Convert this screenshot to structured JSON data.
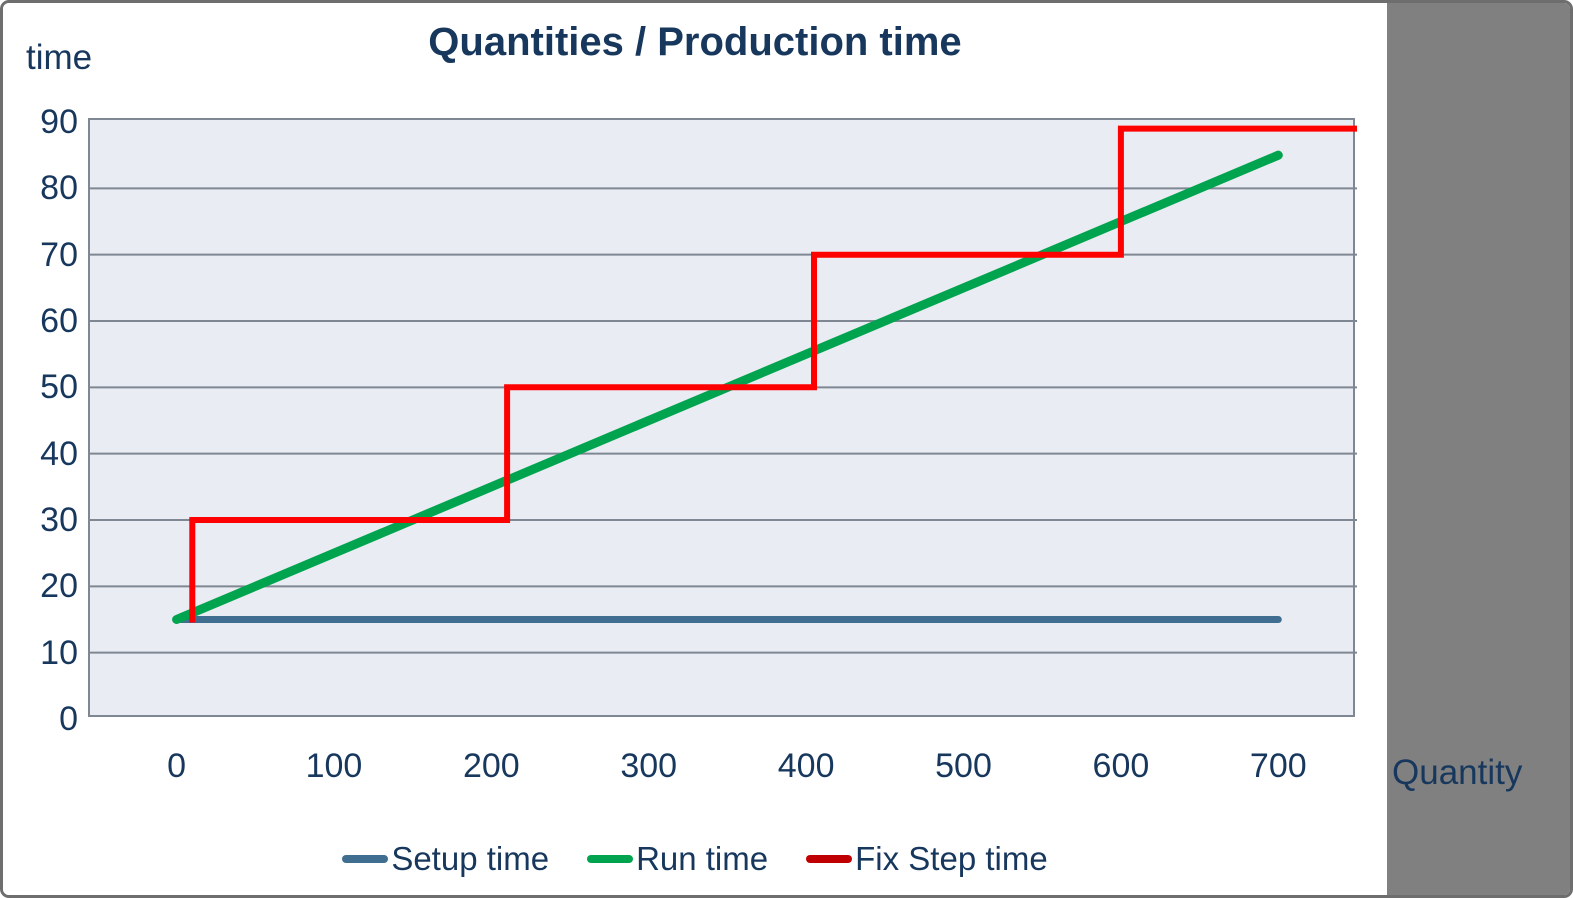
{
  "header": {
    "title": "Quantities / Production time"
  },
  "chart_data": {
    "type": "line",
    "title": "Quantities / Production time",
    "x_axis": {
      "label": "Quantity",
      "min": -55,
      "max": 750,
      "ticks": [
        0,
        100,
        200,
        300,
        400,
        500,
        600,
        700
      ]
    },
    "y_axis": {
      "label": "time",
      "min": 0,
      "max": 90.3,
      "ticks": [
        0,
        10,
        20,
        30,
        40,
        50,
        60,
        70,
        80,
        90
      ]
    },
    "grid": "horizontal-only",
    "legend_position": "bottom",
    "series": [
      {
        "name": "Setup time",
        "color": "#406E90",
        "legend_color": "#406E90",
        "width": 7,
        "linecap": "round",
        "points": [
          [
            0,
            15
          ],
          [
            700,
            15
          ]
        ]
      },
      {
        "name": "Run time",
        "color": "#00A44F",
        "legend_color": "#00A44F",
        "width": 9,
        "linecap": "round",
        "points": [
          [
            0,
            15
          ],
          [
            700,
            85
          ]
        ]
      },
      {
        "name": "Fix Step time",
        "color": "#FF0000",
        "legend_color": "#C00000",
        "width": 6,
        "linecap": "square",
        "points": [
          [
            10,
            15
          ],
          [
            10,
            30
          ],
          [
            210,
            30
          ],
          [
            210,
            50
          ],
          [
            405,
            50
          ],
          [
            405,
            70
          ],
          [
            600,
            70
          ],
          [
            600,
            89
          ],
          [
            750,
            89
          ]
        ]
      }
    ],
    "plot_bg": "#E9ECF2",
    "gridline_color": "#7F8792",
    "text_color": "#17375D"
  }
}
